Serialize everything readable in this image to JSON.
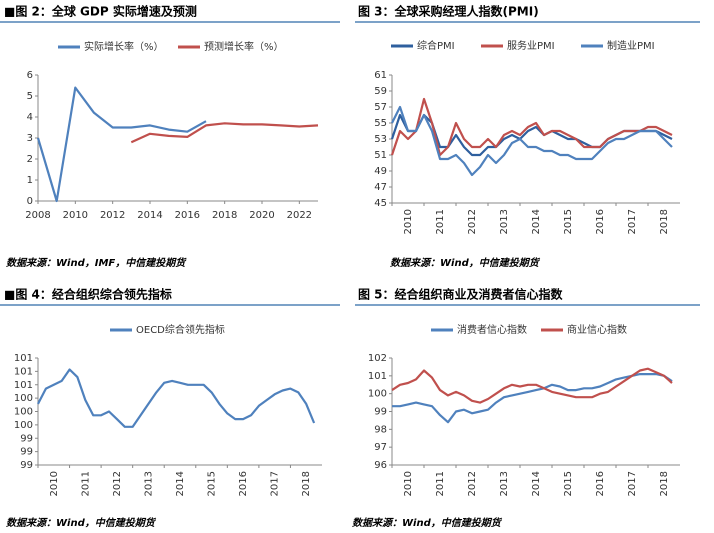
{
  "chart_data": [
    {
      "type": "line",
      "title": "■图 2：全球 GDP 实际增速及预测",
      "source": "数据来源：Wind，IMF，中信建投期货",
      "x": [
        2008,
        2009,
        2010,
        2011,
        2012,
        2013,
        2014,
        2015,
        2016,
        2017,
        2018,
        2019,
        2020,
        2021,
        2022,
        2023
      ],
      "xlim": [
        2008,
        2023
      ],
      "xticks": [
        2008,
        2010,
        2012,
        2014,
        2016,
        2018,
        2020,
        2022
      ],
      "ylim": [
        0,
        6
      ],
      "yticks": [
        0,
        1,
        2,
        3,
        4,
        5,
        6
      ],
      "series": [
        {
          "name": "实际增长率（%）",
          "color": "#4f81bd",
          "values": [
            3.0,
            0,
            5.4,
            4.2,
            3.5,
            3.5,
            3.6,
            3.4,
            3.3,
            3.8,
            null,
            null,
            null,
            null,
            null,
            null
          ]
        },
        {
          "name": "预测增长率（%）",
          "color": "#c0504d",
          "values": [
            null,
            null,
            null,
            null,
            null,
            2.8,
            3.2,
            3.1,
            3.05,
            3.6,
            3.7,
            3.65,
            3.65,
            3.6,
            3.55,
            3.6
          ]
        }
      ]
    },
    {
      "type": "line",
      "title": "图 3：全球采购经理人指数(PMI)",
      "source": "数据来源：Wind，中信建投期货",
      "x": [
        2010,
        2010.25,
        2010.5,
        2010.75,
        2011,
        2011.25,
        2011.5,
        2011.75,
        2012,
        2012.25,
        2012.5,
        2012.75,
        2013,
        2013.25,
        2013.5,
        2013.75,
        2014,
        2014.25,
        2014.5,
        2014.75,
        2015,
        2015.25,
        2015.5,
        2015.75,
        2016,
        2016.25,
        2016.5,
        2016.75,
        2017,
        2017.25,
        2017.5,
        2017.75,
        2018,
        2018.25,
        2018.5,
        2018.75
      ],
      "xlim": [
        2010,
        2019
      ],
      "xticks": [
        2010,
        2011,
        2012,
        2013,
        2014,
        2015,
        2016,
        2017,
        2018
      ],
      "ylim": [
        45,
        61
      ],
      "yticks": [
        45,
        47,
        49,
        51,
        53,
        55,
        57,
        59,
        61
      ],
      "series": [
        {
          "name": "综合PMI",
          "color": "#2e5f9e",
          "values": [
            53,
            56,
            54,
            54,
            56,
            55,
            52,
            52,
            53.5,
            52,
            51,
            51,
            52,
            52,
            53,
            53.5,
            53,
            54,
            54.5,
            53.5,
            54,
            53.5,
            53,
            53,
            52.5,
            52,
            52,
            53,
            53.5,
            54,
            54,
            54,
            54,
            54,
            53.5,
            53
          ]
        },
        {
          "name": "服务业PMI",
          "color": "#c0504d",
          "values": [
            51,
            54,
            53,
            54,
            58,
            55,
            51,
            52,
            55,
            53,
            52,
            52,
            53,
            52,
            53.5,
            54,
            53.5,
            54.5,
            55,
            53.5,
            54,
            54,
            53.5,
            53,
            52,
            52,
            52,
            53,
            53.5,
            54,
            54,
            54,
            54.5,
            54.5,
            54,
            53.5
          ]
        },
        {
          "name": "制造业PMI",
          "color": "#4f81bd",
          "values": [
            55,
            57,
            54,
            54,
            56,
            54,
            50.5,
            50.5,
            51,
            50,
            48.5,
            49.5,
            51,
            50,
            51,
            52.5,
            53,
            52,
            52,
            51.5,
            51.5,
            51,
            51,
            50.5,
            50.5,
            50.5,
            51.5,
            52.5,
            53,
            53,
            53.5,
            54,
            54,
            54,
            53,
            52
          ]
        }
      ]
    },
    {
      "type": "line",
      "title": "■图 4：经合组织综合领先指标",
      "source": "数据来源：Wind，中信建投期货",
      "x": [
        2010,
        2010.25,
        2010.5,
        2010.75,
        2011,
        2011.25,
        2011.5,
        2011.75,
        2012,
        2012.25,
        2012.5,
        2012.75,
        2013,
        2013.25,
        2013.5,
        2013.75,
        2014,
        2014.25,
        2014.5,
        2014.75,
        2015,
        2015.25,
        2015.5,
        2015.75,
        2016,
        2016.25,
        2016.5,
        2016.75,
        2017,
        2017.25,
        2017.5,
        2017.75,
        2018,
        2018.25,
        2018.5,
        2018.75
      ],
      "xlim": [
        2010,
        2019
      ],
      "xticks": [
        2010,
        2011,
        2012,
        2013,
        2014,
        2015,
        2016,
        2017,
        2018
      ],
      "ylim": [
        98.6,
        101.4
      ],
      "yticks": [
        {
          "value": 98.6,
          "label": "99"
        },
        {
          "value": 98.95,
          "label": "99"
        },
        {
          "value": 99.3,
          "label": "99"
        },
        {
          "value": 99.65,
          "label": "100"
        },
        {
          "value": 100.0,
          "label": "100"
        },
        {
          "value": 100.35,
          "label": "100"
        },
        {
          "value": 100.7,
          "label": "101"
        },
        {
          "value": 101.05,
          "label": "101"
        },
        {
          "value": 101.4,
          "label": "101"
        }
      ],
      "series": [
        {
          "name": "OECD综合领先指标",
          "color": "#4f81bd",
          "values": [
            100.2,
            100.6,
            100.7,
            100.8,
            101.1,
            100.9,
            100.3,
            99.9,
            99.9,
            100.0,
            99.8,
            99.6,
            99.6,
            99.9,
            100.2,
            100.5,
            100.75,
            100.8,
            100.75,
            100.7,
            100.7,
            100.7,
            100.5,
            100.2,
            99.95,
            99.8,
            99.8,
            99.9,
            100.15,
            100.3,
            100.45,
            100.55,
            100.6,
            100.5,
            100.2,
            99.7
          ]
        }
      ]
    },
    {
      "type": "line",
      "title": "图 5：经合组织商业及消费者信心指数",
      "source": "数据来源：Wind，中信建投期货",
      "x": [
        2010,
        2010.25,
        2010.5,
        2010.75,
        2011,
        2011.25,
        2011.5,
        2011.75,
        2012,
        2012.25,
        2012.5,
        2012.75,
        2013,
        2013.25,
        2013.5,
        2013.75,
        2014,
        2014.25,
        2014.5,
        2014.75,
        2015,
        2015.25,
        2015.5,
        2015.75,
        2016,
        2016.25,
        2016.5,
        2016.75,
        2017,
        2017.25,
        2017.5,
        2017.75,
        2018,
        2018.25,
        2018.5,
        2018.75
      ],
      "xlim": [
        2010,
        2019
      ],
      "xticks": [
        2010,
        2011,
        2012,
        2013,
        2014,
        2015,
        2016,
        2017,
        2018
      ],
      "ylim": [
        96,
        102
      ],
      "yticks": [
        96,
        97,
        98,
        99,
        100,
        101,
        102
      ],
      "series": [
        {
          "name": "消费者信心指数",
          "color": "#4f81bd",
          "values": [
            99.3,
            99.3,
            99.4,
            99.5,
            99.4,
            99.3,
            98.8,
            98.4,
            99.0,
            99.1,
            98.9,
            99.0,
            99.1,
            99.5,
            99.8,
            99.9,
            100.0,
            100.1,
            100.2,
            100.3,
            100.5,
            100.4,
            100.2,
            100.2,
            100.3,
            100.3,
            100.4,
            100.6,
            100.8,
            100.9,
            101.0,
            101.1,
            101.1,
            101.1,
            101.0,
            100.7
          ]
        },
        {
          "name": "商业信心指数",
          "color": "#c0504d",
          "values": [
            100.2,
            100.5,
            100.6,
            100.8,
            101.3,
            100.9,
            100.2,
            99.9,
            100.1,
            99.9,
            99.6,
            99.5,
            99.7,
            100.0,
            100.3,
            100.5,
            100.4,
            100.5,
            100.5,
            100.3,
            100.1,
            100.0,
            99.9,
            99.8,
            99.8,
            99.8,
            100.0,
            100.1,
            100.4,
            100.7,
            101.0,
            101.3,
            101.4,
            101.2,
            101.0,
            100.6
          ]
        }
      ]
    }
  ]
}
